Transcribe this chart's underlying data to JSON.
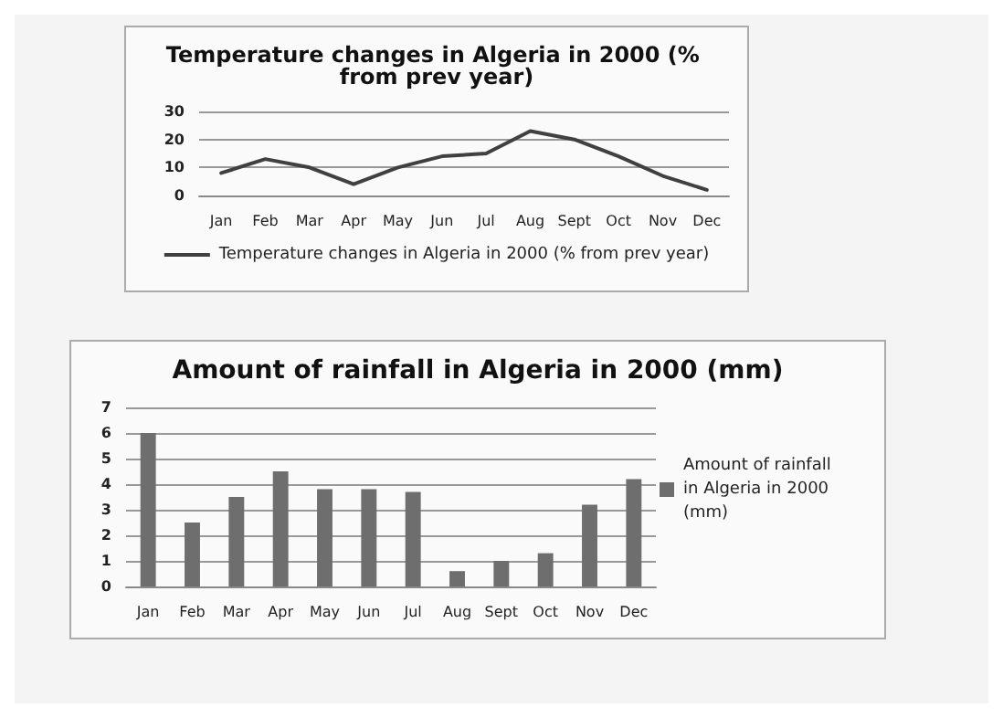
{
  "chart_data": [
    {
      "type": "line",
      "title": "Temperature changes in Algeria in 2000 (% from prev year)",
      "categories": [
        "Jan",
        "Feb",
        "Mar",
        "Apr",
        "May",
        "Jun",
        "Jul",
        "Aug",
        "Sept",
        "Oct",
        "Nov",
        "Dec"
      ],
      "series": [
        {
          "name": "Temperature changes in Algeria in 2000 (% from prev year)",
          "color": "#404040",
          "values": [
            8,
            13,
            10,
            4,
            10,
            14,
            15,
            23,
            20,
            14,
            7,
            2
          ]
        }
      ],
      "ylim": [
        0,
        30
      ],
      "yticks": [
        0,
        10,
        20,
        30
      ],
      "grid": "y",
      "legend": "bottom",
      "marker": "none",
      "line_style": "solid"
    },
    {
      "type": "bar",
      "title": "Amount of rainfall in Algeria in 2000 (mm)",
      "categories": [
        "Jan",
        "Feb",
        "Mar",
        "Apr",
        "May",
        "Jun",
        "Jul",
        "Aug",
        "Sept",
        "Oct",
        "Nov",
        "Dec"
      ],
      "series": [
        {
          "name": "Amount of rainfall in Algeria in 2000 (mm)",
          "color": "#6e6e6e",
          "values": [
            6,
            2.5,
            3.5,
            4.5,
            3.8,
            3.8,
            3.7,
            0.6,
            1,
            1.3,
            3.2,
            4.2
          ]
        }
      ],
      "ylim": [
        0,
        7
      ],
      "yticks": [
        0,
        1,
        2,
        3,
        4,
        5,
        6,
        7
      ],
      "grid": "y",
      "legend": "right"
    }
  ]
}
